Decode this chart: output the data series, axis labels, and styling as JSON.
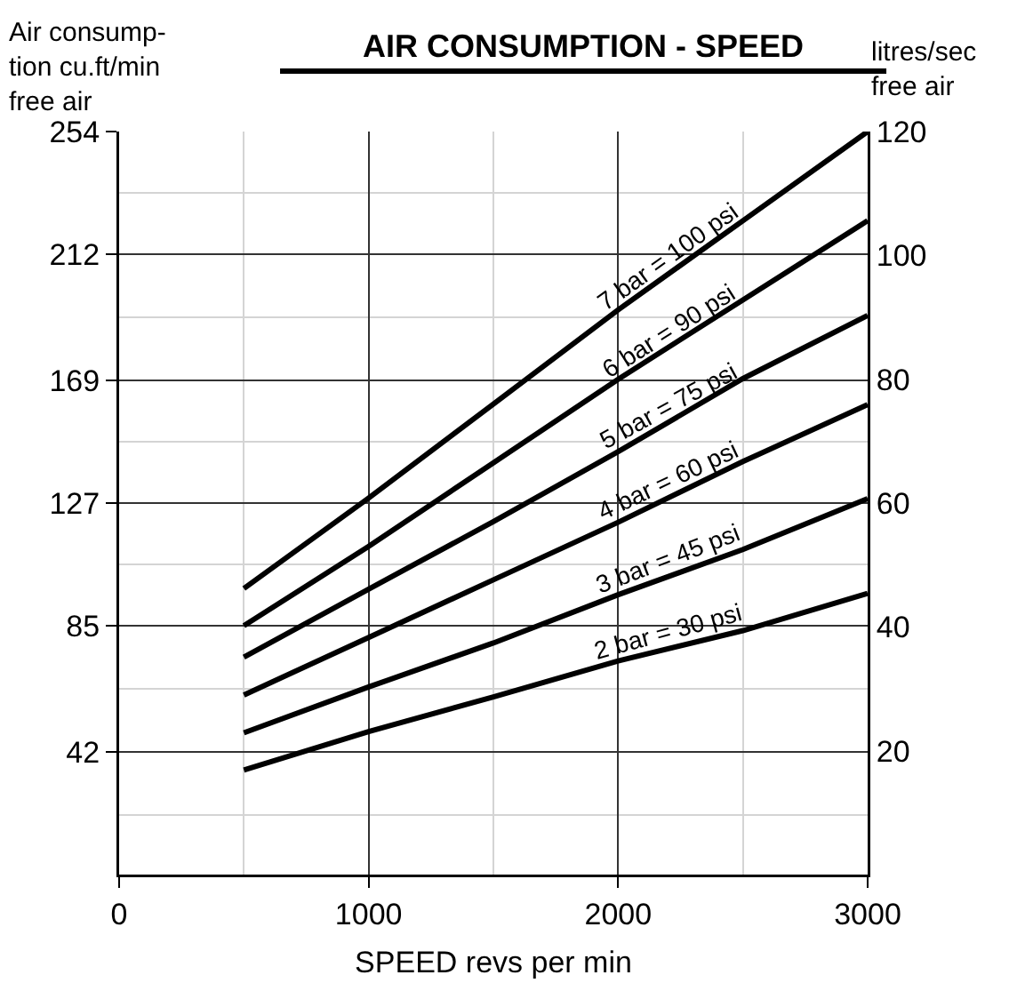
{
  "chart_data": {
    "type": "line",
    "title": "AIR CONSUMPTION - SPEED",
    "xlabel": "SPEED revs per min",
    "ylabel": "Air consump-\ntion cu.ft/min\nfree air",
    "y2label": "litres/sec\nfree air",
    "x": [
      500,
      1000,
      1500,
      2000,
      2500,
      3000
    ],
    "series": [
      {
        "name": "7 bar = 100 psi",
        "color": "#000000",
        "axis": "y2",
        "values": [
          46.2,
          60.8,
          76,
          91.2,
          105.6,
          120
        ]
      },
      {
        "name": "6 bar = 90 psi",
        "color": "#000000",
        "axis": "y2",
        "values": [
          40.2,
          53,
          66.5,
          80,
          92.8,
          105.6
        ]
      },
      {
        "name": "5 bar = 75 psi",
        "color": "#000000",
        "axis": "y2",
        "values": [
          35.1,
          46.1,
          57,
          68.3,
          80.1,
          90.3
        ]
      },
      {
        "name": "4 bar = 60 psi",
        "color": "#000000",
        "axis": "y2",
        "values": [
          29,
          38.3,
          47.6,
          56.9,
          66.7,
          75.9
        ]
      },
      {
        "name": "3 bar = 45 psi",
        "color": "#000000",
        "axis": "y2",
        "values": [
          22.9,
          30.3,
          37.4,
          45.2,
          52.5,
          60.7
        ]
      },
      {
        "name": "2 bar = 30 psi",
        "color": "#000000",
        "axis": "y2",
        "values": [
          16.9,
          23.1,
          28.7,
          34.5,
          39.4,
          45.4
        ]
      }
    ],
    "xlim": [
      0,
      3000
    ],
    "xticks": [
      0,
      1000,
      2000,
      3000
    ],
    "ylim": [
      0,
      254
    ],
    "yticks": [
      42,
      85,
      127,
      169,
      212,
      254
    ],
    "y2lim": [
      0,
      120
    ],
    "y2ticks": [
      20,
      40,
      60,
      80,
      100,
      120
    ],
    "grid": true,
    "legend": false,
    "marker": "none",
    "line_style": "solid"
  }
}
